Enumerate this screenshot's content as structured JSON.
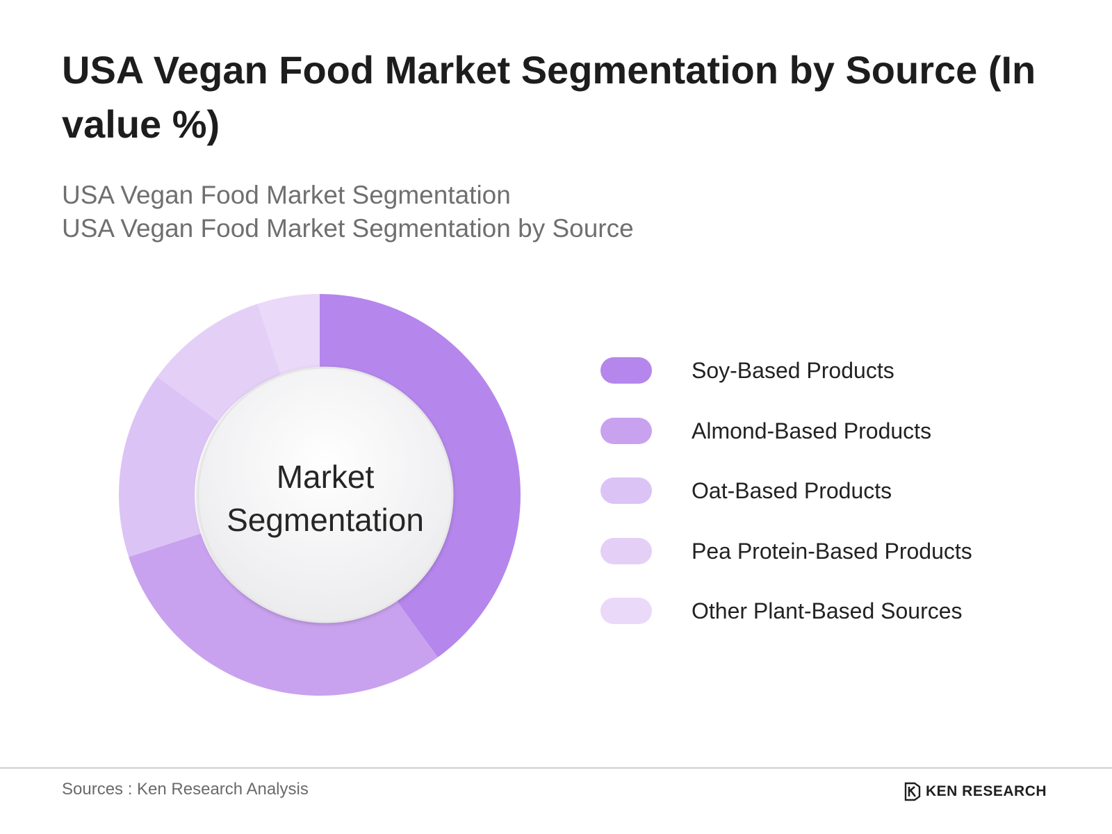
{
  "chart_data": {
    "type": "pie",
    "title": "USA Vegan Food Market Segmentation by Source (In value %)",
    "subtitles": [
      "USA Vegan Food Market Segmentation",
      "USA Vegan Food Market Segmentation by Source"
    ],
    "center_label": "Market Segmentation",
    "categories": [
      "Soy-Based Products",
      "Almond-Based Products",
      "Oat-Based Products",
      "Pea Protein-Based Products",
      "Other Plant-Based Sources"
    ],
    "values": [
      40,
      30,
      15,
      10,
      5
    ],
    "colors": [
      "#b586ec",
      "#c9a2ef",
      "#dcc3f5",
      "#e4cff7",
      "#ead9f9"
    ],
    "legend_position": "right",
    "donut": true
  },
  "footer": {
    "source": "Sources : Ken Research Analysis",
    "brand": "KEN RESEARCH",
    "brand_icon": "ken-research-logo-icon"
  }
}
